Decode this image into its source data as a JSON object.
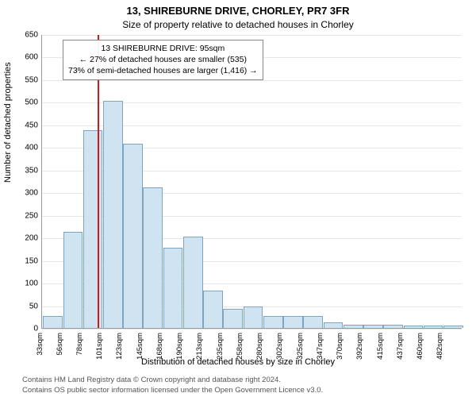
{
  "title_line1": "13, SHIREBURNE DRIVE, CHORLEY, PR7 3FR",
  "title_line2": "Size of property relative to detached houses in Chorley",
  "ylabel": "Number of detached properties",
  "xlabel": "Distribution of detached houses by size in Chorley",
  "footer1": "Contains HM Land Registry data © Crown copyright and database right 2024.",
  "footer2": "Contains OS public sector information licensed under the Open Government Licence v3.0.",
  "chart": {
    "type": "histogram",
    "ylim": [
      0,
      650
    ],
    "ytick_step": 50,
    "grid_color": "#e6e6e6",
    "bar_fill": "#cfe4f0",
    "bar_stroke": "#7aa6c2",
    "marker_color": "#d11919",
    "marker_value_sqm": 95,
    "x_start": 33,
    "x_bin_width": 22.5,
    "x_ticks": [
      33,
      56,
      78,
      101,
      123,
      145,
      168,
      190,
      213,
      235,
      258,
      280,
      302,
      325,
      347,
      370,
      392,
      415,
      437,
      460,
      482
    ],
    "bars": [
      25,
      210,
      435,
      500,
      405,
      310,
      175,
      200,
      80,
      40,
      45,
      25,
      25,
      25,
      10,
      5,
      5,
      5,
      3,
      3,
      3
    ],
    "annotation": {
      "line1": "13 SHIREBURNE DRIVE: 95sqm",
      "line2": "← 27% of detached houses are smaller (535)",
      "line3": "73% of semi-detached houses are larger (1,416) →"
    }
  }
}
